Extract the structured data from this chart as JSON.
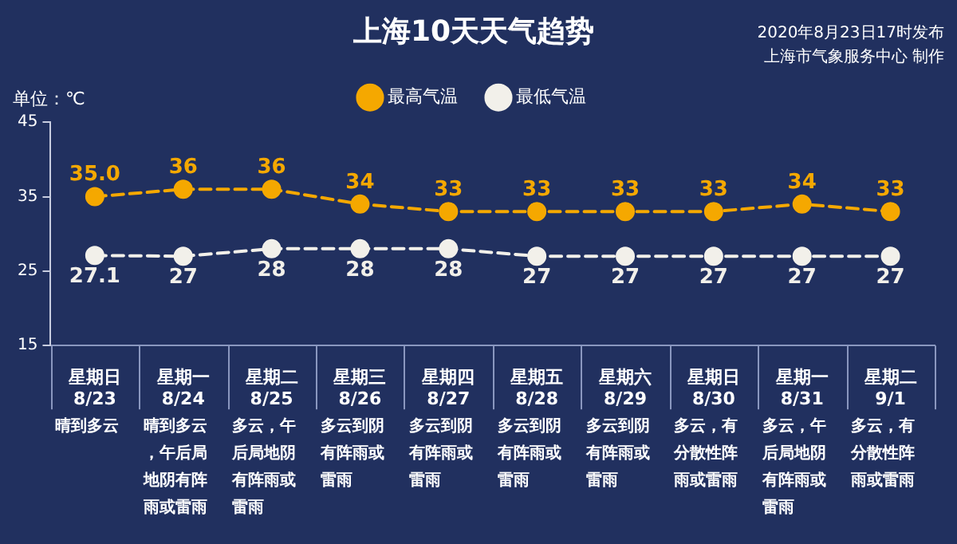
{
  "chart_data": {
    "type": "line",
    "title": "上海10天天气趋势",
    "ylabel": "单位：℃",
    "categories": [
      "星期日\n8/23",
      "星期一\n8/24",
      "星期二\n8/25",
      "星期三\n8/26",
      "星期四\n8/27",
      "星期五\n8/28",
      "星期六\n8/29",
      "星期日\n8/30",
      "星期一\n8/31",
      "星期二\n9/1"
    ],
    "series": [
      {
        "name": "最高气温",
        "color": "#f5a800",
        "values": [
          35,
          36,
          36,
          34,
          33,
          33,
          33,
          33,
          34,
          33
        ],
        "value_labels": [
          "35.0",
          "36",
          "36",
          "34",
          "33",
          "33",
          "33",
          "33",
          "34",
          "33"
        ]
      },
      {
        "name": "最低气温",
        "color": "#f2f0ea",
        "values": [
          27.1,
          27,
          28,
          28,
          28,
          27,
          27,
          27,
          27,
          27
        ],
        "value_labels": [
          "27.1",
          "27",
          "28",
          "28",
          "28",
          "27",
          "27",
          "27",
          "27",
          "27"
        ]
      }
    ],
    "ylim": [
      15,
      45
    ],
    "yticks": [
      15,
      25,
      35,
      45
    ],
    "legend": "top",
    "marker": "circle",
    "line_style": "dashed",
    "annotations": [
      "2020年8月23日17时发布",
      "上海市气象服务中心 制作",
      "晴到多云",
      "晴到多云，午后局地阴有阵雨或雷雨",
      "多云，午后局地阴有阵雨或雷雨",
      "多云到阴有阵雨或雷雨",
      "多云到阴有阵雨或雷雨",
      "多云到阴有阵雨或雷雨",
      "多云到阴有阵雨或雷雨",
      "多云，有分散性阵雨或雷雨",
      "多云，午后局地阴有阵雨或雷雨",
      "多云，有分散性阵雨或雷雨"
    ]
  }
}
